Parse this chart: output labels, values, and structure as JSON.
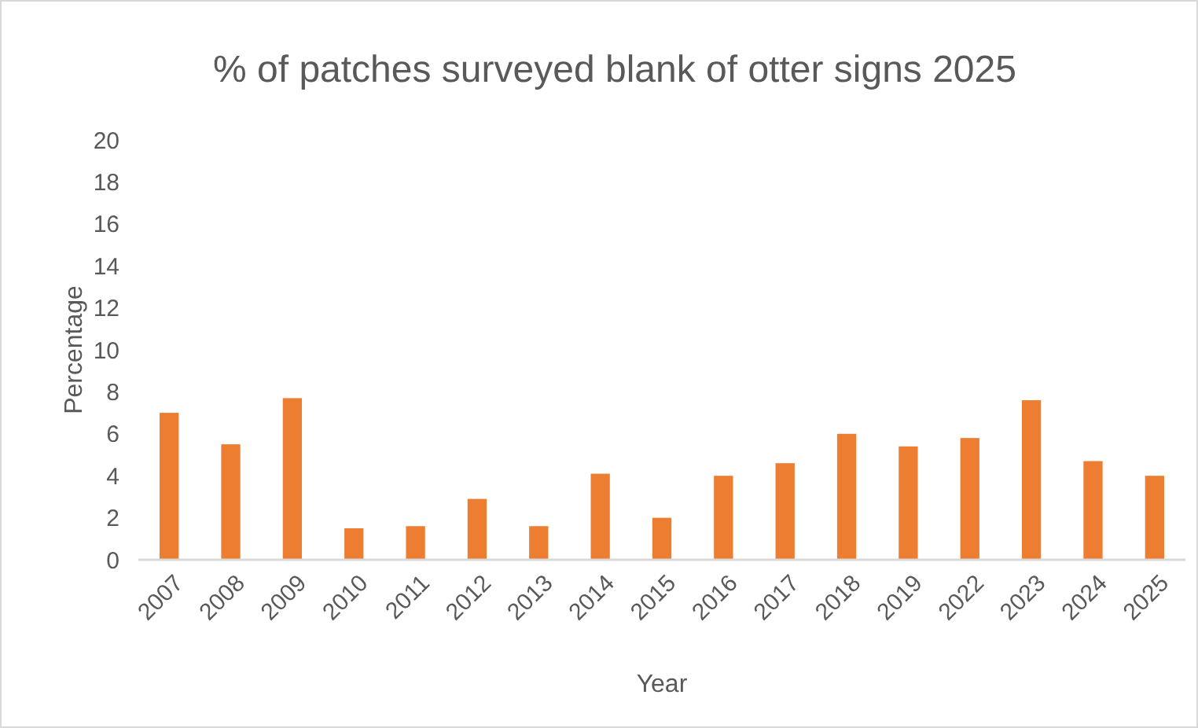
{
  "chart_data": {
    "type": "bar",
    "title": "% of patches surveyed blank of otter signs 2025",
    "xlabel": "Year",
    "ylabel": "Percentage",
    "categories": [
      "2007",
      "2008",
      "2009",
      "2010",
      "2011",
      "2012",
      "2013",
      "2014",
      "2015",
      "2016",
      "2017",
      "2018",
      "2019",
      "2022",
      "2023",
      "2024",
      "2025"
    ],
    "values": [
      7.0,
      5.5,
      7.7,
      1.5,
      1.6,
      2.9,
      1.6,
      4.1,
      2.0,
      4.0,
      4.6,
      6.0,
      5.4,
      5.8,
      7.6,
      4.7,
      4.0
    ],
    "color": "#ed7d31",
    "ylim": [
      0,
      20
    ],
    "yticks": [
      0,
      2,
      4,
      6,
      8,
      10,
      12,
      14,
      16,
      18,
      20
    ],
    "grid": false
  }
}
